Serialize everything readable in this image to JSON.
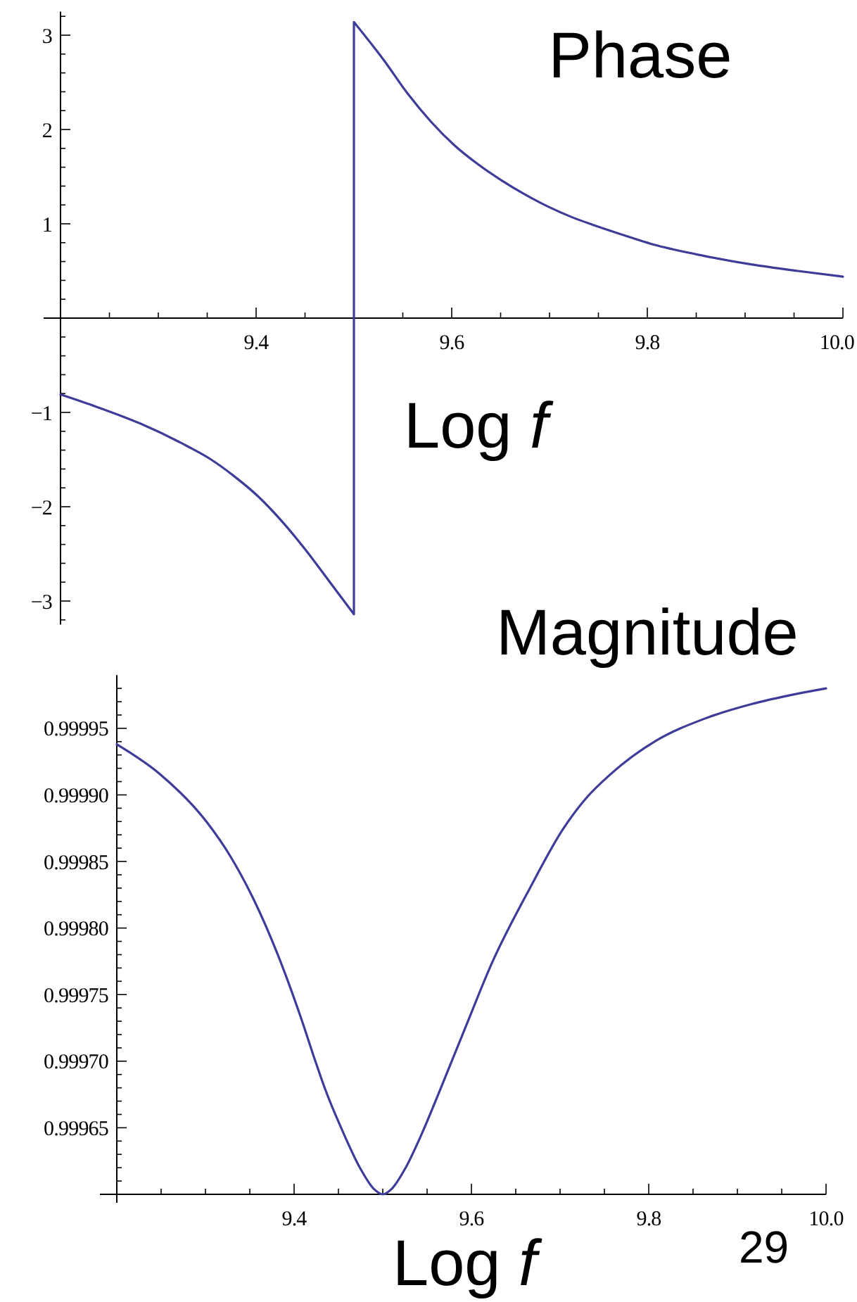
{
  "chart_data": [
    {
      "type": "line",
      "title": "Phase",
      "xlabel": "Log f",
      "series": [
        {
          "color": "#3d3d99",
          "x": [
            9.2,
            9.234,
            9.282,
            9.33,
            9.354,
            9.378,
            9.402,
            9.426,
            9.45,
            9.474,
            9.5,
            9.5,
            9.531,
            9.555,
            9.579,
            9.603,
            9.627,
            9.651,
            9.675,
            9.699,
            9.723,
            9.747,
            9.77,
            9.81,
            9.858,
            9.906,
            9.954,
            10.0
          ],
          "values": [
            -0.81,
            -0.93,
            -1.12,
            -1.36,
            -1.5,
            -1.68,
            -1.89,
            -2.15,
            -2.45,
            -2.78,
            -3.14,
            3.14,
            2.73,
            2.38,
            2.08,
            1.83,
            1.63,
            1.46,
            1.31,
            1.18,
            1.07,
            0.98,
            0.9,
            0.77,
            0.66,
            0.57,
            0.5,
            0.44
          ]
        }
      ],
      "xlim": [
        9.2,
        10.0
      ],
      "ylim": [
        -3.25,
        3.25
      ],
      "xticks": [
        {
          "value": 9.25,
          "label": null
        },
        {
          "value": 9.3,
          "label": null
        },
        {
          "value": 9.35,
          "label": null
        },
        9.4,
        {
          "value": 9.45,
          "label": null
        },
        {
          "value": 9.5,
          "label": null
        },
        {
          "value": 9.55,
          "label": null
        },
        9.6,
        {
          "value": 9.65,
          "label": null
        },
        {
          "value": 9.7,
          "label": null
        },
        {
          "value": 9.75,
          "label": null
        },
        9.8,
        {
          "value": 9.85,
          "label": null
        },
        {
          "value": 9.9,
          "label": null
        },
        {
          "value": 9.95,
          "label": null
        },
        {
          "value": 10.0,
          "label": "10.0"
        }
      ],
      "yticks": [
        {
          "value": -3.2,
          "label": null
        },
        -3,
        {
          "value": -2.8,
          "label": null
        },
        {
          "value": -2.6,
          "label": null
        },
        {
          "value": -2.4,
          "label": null
        },
        {
          "value": -2.2,
          "label": null
        },
        -2,
        {
          "value": -1.8,
          "label": null
        },
        {
          "value": -1.6,
          "label": null
        },
        {
          "value": -1.4,
          "label": null
        },
        {
          "value": -1.2,
          "label": null
        },
        -1,
        {
          "value": -0.8,
          "label": null
        },
        {
          "value": -0.6,
          "label": null
        },
        {
          "value": -0.4,
          "label": null
        },
        {
          "value": -0.2,
          "label": null
        },
        {
          "value": 0.2,
          "label": null
        },
        {
          "value": 0.4,
          "label": null
        },
        {
          "value": 0.6,
          "label": null
        },
        {
          "value": 0.8,
          "label": null
        },
        1,
        {
          "value": 1.2,
          "label": null
        },
        {
          "value": 1.4,
          "label": null
        },
        {
          "value": 1.6,
          "label": null
        },
        {
          "value": 1.8,
          "label": null
        },
        2,
        {
          "value": 2.2,
          "label": null
        },
        {
          "value": 2.4,
          "label": null
        },
        {
          "value": 2.6,
          "label": null
        },
        {
          "value": 2.8,
          "label": null
        },
        3,
        {
          "value": 3.2,
          "label": null
        }
      ]
    },
    {
      "type": "line",
      "title": "Magnitude",
      "xlabel": "Log f",
      "series": [
        {
          "color": "#3d3d99",
          "x": [
            9.2,
            9.248,
            9.301,
            9.328,
            9.354,
            9.381,
            9.407,
            9.425,
            9.435,
            9.455,
            9.475,
            9.49,
            9.5,
            9.51,
            9.525,
            9.545,
            9.565,
            9.593,
            9.624,
            9.666,
            9.703,
            9.73,
            9.756,
            9.809,
            9.862,
            9.915,
            9.968,
            10.0
          ],
          "values": [
            0.999938,
            0.999916,
            0.99988,
            0.999854,
            0.999822,
            0.999781,
            0.999734,
            0.999698,
            0.999679,
            0.999647,
            0.999619,
            0.999604,
            0.9996,
            0.999604,
            0.999619,
            0.999647,
            0.999679,
            0.999725,
            0.999775,
            0.99983,
            0.999874,
            0.999898,
            0.999915,
            0.999941,
            0.999957,
            0.999968,
            0.999976,
            0.99998
          ]
        }
      ],
      "xlim": [
        9.2,
        10.0
      ],
      "ylim": [
        0.9996,
        0.99999
      ],
      "xticks": [
        {
          "value": 9.25,
          "label": null
        },
        {
          "value": 9.3,
          "label": null
        },
        {
          "value": 9.35,
          "label": null
        },
        9.4,
        {
          "value": 9.45,
          "label": null
        },
        {
          "value": 9.5,
          "label": null
        },
        {
          "value": 9.55,
          "label": null
        },
        9.6,
        {
          "value": 9.65,
          "label": null
        },
        {
          "value": 9.7,
          "label": null
        },
        {
          "value": 9.75,
          "label": null
        },
        9.8,
        {
          "value": 9.85,
          "label": null
        },
        {
          "value": 9.9,
          "label": null
        },
        {
          "value": 9.95,
          "label": null
        },
        {
          "value": 10.0,
          "label": "10.0"
        }
      ],
      "yticks": [
        {
          "value": 0.99961,
          "label": null
        },
        {
          "value": 0.99962,
          "label": null
        },
        {
          "value": 0.99963,
          "label": null
        },
        {
          "value": 0.99964,
          "label": null
        },
        0.99965,
        {
          "value": 0.99966,
          "label": null
        },
        {
          "value": 0.99967,
          "label": null
        },
        {
          "value": 0.99968,
          "label": null
        },
        {
          "value": 0.99969,
          "label": null
        },
        {
          "value": 0.9997,
          "label": "0.99970"
        },
        {
          "value": 0.99971,
          "label": null
        },
        {
          "value": 0.99972,
          "label": null
        },
        {
          "value": 0.99973,
          "label": null
        },
        {
          "value": 0.99974,
          "label": null
        },
        0.99975,
        {
          "value": 0.99976,
          "label": null
        },
        {
          "value": 0.99977,
          "label": null
        },
        {
          "value": 0.99978,
          "label": null
        },
        {
          "value": 0.99979,
          "label": null
        },
        {
          "value": 0.9998,
          "label": "0.99980"
        },
        {
          "value": 0.99981,
          "label": null
        },
        {
          "value": 0.99982,
          "label": null
        },
        {
          "value": 0.99983,
          "label": null
        },
        {
          "value": 0.99984,
          "label": null
        },
        0.99985,
        {
          "value": 0.99986,
          "label": null
        },
        {
          "value": 0.99987,
          "label": null
        },
        {
          "value": 0.99988,
          "label": null
        },
        {
          "value": 0.99989,
          "label": null
        },
        {
          "value": 0.9999,
          "label": "0.99990"
        },
        {
          "value": 0.99991,
          "label": null
        },
        {
          "value": 0.99992,
          "label": null
        },
        {
          "value": 0.99993,
          "label": null
        },
        {
          "value": 0.99994,
          "label": null
        },
        0.99995,
        {
          "value": 0.99996,
          "label": null
        },
        {
          "value": 0.99997,
          "label": null
        },
        {
          "value": 0.99998,
          "label": null
        }
      ],
      "annotations": [
        "29"
      ]
    }
  ]
}
